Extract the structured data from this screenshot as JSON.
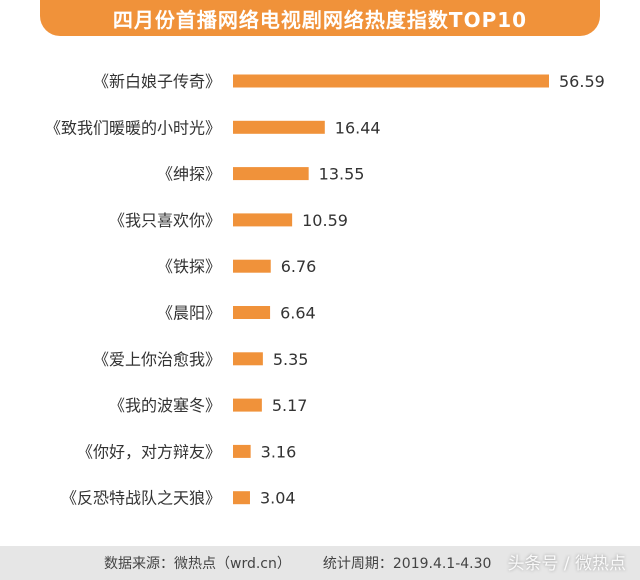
{
  "header": {
    "title": "四月份首播网络电视剧网络热度指数TOP10"
  },
  "chart_data": {
    "type": "bar",
    "orientation": "horizontal",
    "title": "四月份首播网络电视剧网络热度指数TOP10",
    "categories": [
      "《新白娘子传奇》",
      "《致我们暖暖的小时光》",
      "《绅探》",
      "《我只喜欢你》",
      "《铁探》",
      "《晨阳》",
      "《爱上你治愈我》",
      "《我的波塞冬》",
      "《你好，对方辩友》",
      "《反恐特战队之天狼》"
    ],
    "values": [
      56.59,
      16.44,
      13.55,
      10.59,
      6.76,
      6.64,
      5.35,
      5.17,
      3.16,
      3.04
    ],
    "value_labels": [
      "56.59",
      "16.44",
      "13.55",
      "10.59",
      "6.76",
      "6.64",
      "5.35",
      "5.17",
      "3.16",
      "3.04"
    ],
    "bar_color": "#f0923a",
    "xlabel": "",
    "ylabel": "",
    "xlim": [
      0,
      56.59
    ],
    "grid": false
  },
  "footer": {
    "source": "数据来源：微热点（wrd.cn）",
    "period": "统计周期：2019.4.1-4.30"
  },
  "watermark": "头条号 / 微热点",
  "colors": {
    "accent": "#f0923a",
    "footer_bg": "#e6e6e6",
    "text": "#333333"
  }
}
